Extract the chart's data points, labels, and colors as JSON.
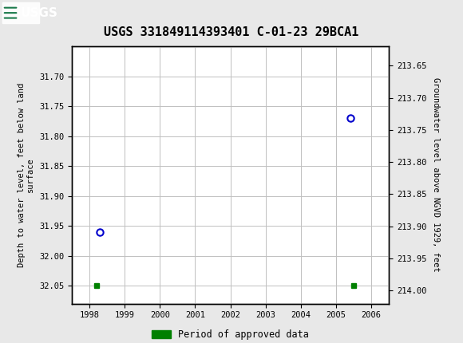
{
  "title": "USGS 331849114393401 C-01-23 29BCA1",
  "ylabel_left": "Depth to water level, feet below land\nsurface",
  "ylabel_right": "Groundwater level above NGVD 1929, feet",
  "xlim_years": [
    1997.5,
    2006.5
  ],
  "ylim_left_bottom": 32.08,
  "ylim_left_top": 31.65,
  "ylim_right_bottom": 214.02,
  "ylim_right_top": 213.62,
  "left_yticks": [
    31.7,
    31.75,
    31.8,
    31.85,
    31.9,
    31.95,
    32.0,
    32.05
  ],
  "right_yticks": [
    214.0,
    213.95,
    213.9,
    213.85,
    213.8,
    213.75,
    213.7,
    213.65
  ],
  "xticks": [
    1998,
    1999,
    2000,
    2001,
    2002,
    2003,
    2004,
    2005,
    2006
  ],
  "circle_points_x": [
    1998.3,
    2005.4
  ],
  "circle_points_y": [
    31.96,
    31.77
  ],
  "square_points_x": [
    1998.2,
    2005.5
  ],
  "square_points_y": [
    32.05,
    32.05
  ],
  "circle_color": "#0000cc",
  "square_color": "#008000",
  "header_bg_color": "#1a7a4a",
  "background_color": "#e8e8e8",
  "plot_bg_color": "#ffffff",
  "grid_color": "#c0c0c0",
  "font_family": "monospace",
  "title_fontsize": 11,
  "axis_label_fontsize": 7.5,
  "tick_fontsize": 7.5,
  "legend_fontsize": 8.5,
  "legend_label": "Period of approved data"
}
